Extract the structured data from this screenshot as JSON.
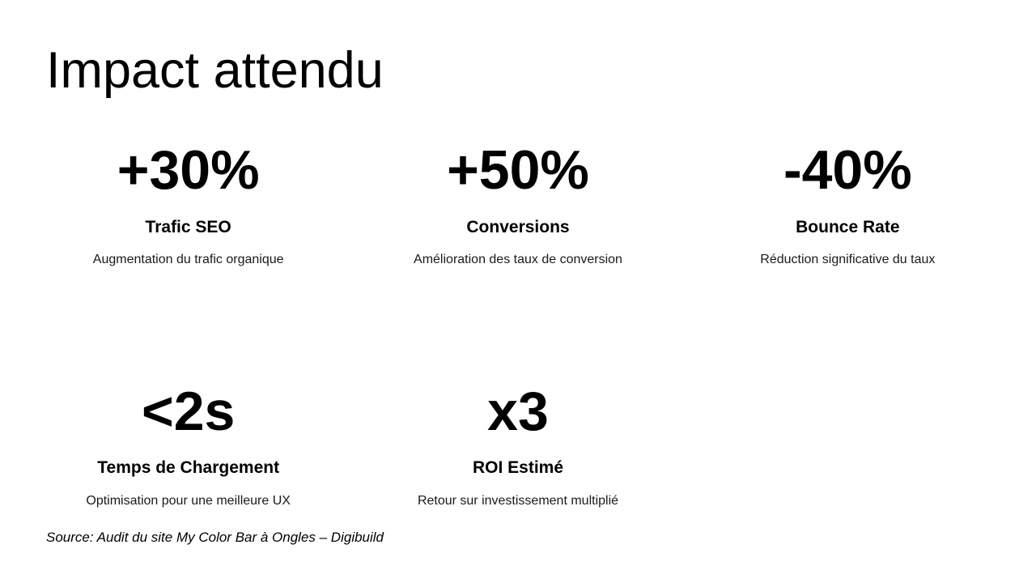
{
  "slide": {
    "title": "Impact attendu",
    "source": "Source: Audit du site My Color Bar à Ongles – Digibuild",
    "colors": {
      "background": "#ffffff",
      "text": "#000000"
    },
    "stats": [
      {
        "value": "+30%",
        "label": "Trafic SEO",
        "description": "Augmentation du trafic organique"
      },
      {
        "value": "+50%",
        "label": "Conversions",
        "description": "Amélioration des taux de conversion"
      },
      {
        "value": "-40%",
        "label": "Bounce Rate",
        "description": "Réduction significative du taux"
      },
      {
        "value": "<2s",
        "label": "Temps de Chargement",
        "description": "Optimisation pour une meilleure UX"
      },
      {
        "value": "x3",
        "label": "ROI Estimé",
        "description": "Retour sur investissement multiplié"
      }
    ]
  }
}
